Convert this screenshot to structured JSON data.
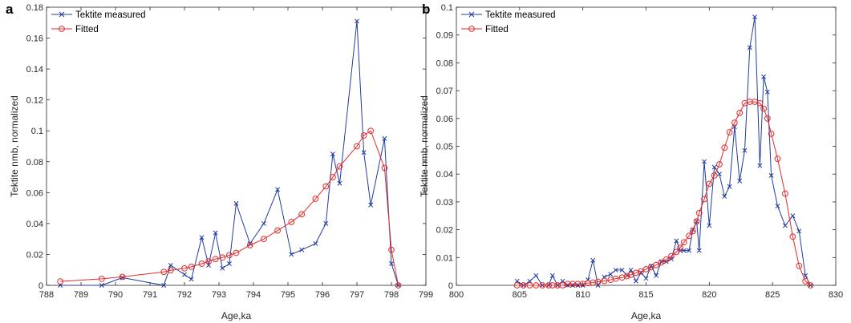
{
  "chart_data": [
    {
      "panel": "a",
      "type": "line",
      "xlabel": "Age,ka",
      "ylabel": "Tektite nmb, normalized",
      "xlim": [
        788,
        799
      ],
      "ylim": [
        0,
        0.18
      ],
      "xticks": [
        "788",
        "789",
        "790",
        "791",
        "792",
        "793",
        "794",
        "795",
        "796",
        "797",
        "798",
        "799"
      ],
      "yticks": [
        "0",
        "0.02",
        "0.04",
        "0.06",
        "0.08",
        "0.1",
        "0.12",
        "0.14",
        "0.16",
        "0.18"
      ],
      "legend_position": "top-left",
      "series": [
        {
          "name": "Tektite measured",
          "color": "#1f3c9e",
          "marker": "x",
          "points": [
            [
              788.4,
              0.0
            ],
            [
              789.6,
              0.0
            ],
            [
              790.2,
              0.005
            ],
            [
              791.4,
              0.0
            ],
            [
              791.6,
              0.013
            ],
            [
              792.0,
              0.007
            ],
            [
              792.2,
              0.004
            ],
            [
              792.5,
              0.031
            ],
            [
              792.7,
              0.013
            ],
            [
              792.9,
              0.034
            ],
            [
              793.1,
              0.011
            ],
            [
              793.3,
              0.014
            ],
            [
              793.5,
              0.053
            ],
            [
              793.9,
              0.027
            ],
            [
              794.3,
              0.04
            ],
            [
              794.7,
              0.062
            ],
            [
              795.1,
              0.02
            ],
            [
              795.4,
              0.023
            ],
            [
              795.8,
              0.027
            ],
            [
              796.1,
              0.04
            ],
            [
              796.3,
              0.085
            ],
            [
              796.5,
              0.066
            ],
            [
              797.0,
              0.171
            ],
            [
              797.2,
              0.086
            ],
            [
              797.4,
              0.052
            ],
            [
              797.8,
              0.095
            ],
            [
              798.0,
              0.014
            ],
            [
              798.2,
              0.0
            ]
          ]
        },
        {
          "name": "Fitted",
          "color": "#e52b2b",
          "marker": "o",
          "points": [
            [
              788.4,
              0.0025
            ],
            [
              789.6,
              0.0042
            ],
            [
              790.2,
              0.0055
            ],
            [
              791.4,
              0.0087
            ],
            [
              791.6,
              0.0097
            ],
            [
              792.0,
              0.011
            ],
            [
              792.2,
              0.012
            ],
            [
              792.5,
              0.014
            ],
            [
              792.7,
              0.0155
            ],
            [
              792.9,
              0.017
            ],
            [
              793.1,
              0.018
            ],
            [
              793.3,
              0.0195
            ],
            [
              793.5,
              0.021
            ],
            [
              793.9,
              0.026
            ],
            [
              794.3,
              0.03
            ],
            [
              794.7,
              0.0355
            ],
            [
              795.1,
              0.041
            ],
            [
              795.4,
              0.046
            ],
            [
              795.8,
              0.056
            ],
            [
              796.1,
              0.064
            ],
            [
              796.3,
              0.07
            ],
            [
              796.5,
              0.077
            ],
            [
              797.0,
              0.09
            ],
            [
              797.2,
              0.097
            ],
            [
              797.4,
              0.1
            ],
            [
              797.8,
              0.076
            ],
            [
              798.0,
              0.023
            ],
            [
              798.2,
              0.0
            ]
          ]
        }
      ]
    },
    {
      "panel": "b",
      "type": "line",
      "xlabel": "Age,ka",
      "ylabel": "Tektite nmb, normalized",
      "xlim": [
        800,
        830
      ],
      "ylim": [
        0,
        0.1
      ],
      "xticks": [
        "800",
        "805",
        "810",
        "815",
        "820",
        "825",
        "830"
      ],
      "yticks": [
        "0",
        "0.01",
        "0.02",
        "0.03",
        "0.04",
        "0.05",
        "0.06",
        "0.07",
        "0.08",
        "0.09",
        "0.1"
      ],
      "legend_position": "top-left",
      "series": [
        {
          "name": "Tektite measured",
          "color": "#1f3c9e",
          "marker": "x",
          "points": [
            [
              804.8,
              0.0015
            ],
            [
              805.3,
              0.0
            ],
            [
              805.8,
              0.0015
            ],
            [
              806.3,
              0.0035
            ],
            [
              806.8,
              0.0
            ],
            [
              807.3,
              0.0
            ],
            [
              807.6,
              0.0035
            ],
            [
              808.0,
              0.0
            ],
            [
              808.4,
              0.0015
            ],
            [
              808.8,
              0.0
            ],
            [
              809.2,
              0.0
            ],
            [
              809.6,
              0.0
            ],
            [
              810.0,
              0.0
            ],
            [
              810.4,
              0.002
            ],
            [
              810.8,
              0.009
            ],
            [
              811.2,
              0.0
            ],
            [
              811.7,
              0.003
            ],
            [
              812.2,
              0.004
            ],
            [
              812.6,
              0.0055
            ],
            [
              813.1,
              0.0055
            ],
            [
              813.5,
              0.0035
            ],
            [
              813.8,
              0.0055
            ],
            [
              814.2,
              0.0015
            ],
            [
              814.6,
              0.0045
            ],
            [
              815.0,
              0.0025
            ],
            [
              815.4,
              0.007
            ],
            [
              815.8,
              0.0035
            ],
            [
              816.2,
              0.0085
            ],
            [
              816.6,
              0.0085
            ],
            [
              817.0,
              0.0095
            ],
            [
              817.4,
              0.016
            ],
            [
              817.7,
              0.0125
            ],
            [
              818.0,
              0.0125
            ],
            [
              818.4,
              0.0125
            ],
            [
              818.7,
              0.02
            ],
            [
              819.0,
              0.023
            ],
            [
              819.2,
              0.0125
            ],
            [
              819.6,
              0.0445
            ],
            [
              820.0,
              0.0215
            ],
            [
              820.4,
              0.0425
            ],
            [
              820.8,
              0.04
            ],
            [
              821.2,
              0.032
            ],
            [
              821.6,
              0.0355
            ],
            [
              822.0,
              0.057
            ],
            [
              822.4,
              0.0375
            ],
            [
              822.8,
              0.0485
            ],
            [
              823.2,
              0.0855
            ],
            [
              823.6,
              0.0965
            ],
            [
              824.0,
              0.043
            ],
            [
              824.3,
              0.075
            ],
            [
              824.6,
              0.0695
            ],
            [
              824.9,
              0.0395
            ],
            [
              825.4,
              0.0285
            ],
            [
              826.0,
              0.0215
            ],
            [
              826.6,
              0.025
            ],
            [
              827.1,
              0.0195
            ],
            [
              827.6,
              0.0035
            ],
            [
              828.0,
              0.0
            ]
          ]
        },
        {
          "name": "Fitted",
          "color": "#e52b2b",
          "marker": "o",
          "points": [
            [
              804.8,
              0.0
            ],
            [
              805.3,
              0.0
            ],
            [
              805.8,
              0.0
            ],
            [
              806.3,
              0.0
            ],
            [
              806.8,
              0.0
            ],
            [
              807.3,
              0.0
            ],
            [
              807.6,
              0.0
            ],
            [
              808.0,
              0.0
            ],
            [
              808.4,
              0.0
            ],
            [
              808.8,
              0.0005
            ],
            [
              809.2,
              0.0005
            ],
            [
              809.6,
              0.0005
            ],
            [
              810.0,
              0.0005
            ],
            [
              810.4,
              0.0008
            ],
            [
              810.8,
              0.001
            ],
            [
              811.2,
              0.0013
            ],
            [
              811.7,
              0.0016
            ],
            [
              812.2,
              0.002
            ],
            [
              812.6,
              0.0024
            ],
            [
              813.1,
              0.0028
            ],
            [
              813.5,
              0.0033
            ],
            [
              813.8,
              0.0038
            ],
            [
              814.2,
              0.0045
            ],
            [
              814.6,
              0.005
            ],
            [
              815.0,
              0.0058
            ],
            [
              815.4,
              0.0065
            ],
            [
              815.8,
              0.0073
            ],
            [
              816.2,
              0.0082
            ],
            [
              816.6,
              0.0093
            ],
            [
              817.0,
              0.0105
            ],
            [
              817.4,
              0.012
            ],
            [
              817.7,
              0.0135
            ],
            [
              818.0,
              0.0155
            ],
            [
              818.4,
              0.0178
            ],
            [
              818.7,
              0.0195
            ],
            [
              819.0,
              0.023
            ],
            [
              819.2,
              0.026
            ],
            [
              819.6,
              0.031
            ],
            [
              820.0,
              0.0365
            ],
            [
              820.4,
              0.0395
            ],
            [
              820.8,
              0.0435
            ],
            [
              821.2,
              0.0495
            ],
            [
              821.6,
              0.055
            ],
            [
              822.0,
              0.0585
            ],
            [
              822.4,
              0.062
            ],
            [
              822.8,
              0.0655
            ],
            [
              823.2,
              0.066
            ],
            [
              823.6,
              0.066
            ],
            [
              824.0,
              0.0655
            ],
            [
              824.3,
              0.0635
            ],
            [
              824.6,
              0.06
            ],
            [
              824.9,
              0.0545
            ],
            [
              825.4,
              0.0455
            ],
            [
              826.0,
              0.033
            ],
            [
              826.6,
              0.0175
            ],
            [
              827.1,
              0.007
            ],
            [
              827.6,
              0.0015
            ],
            [
              828.0,
              0.0
            ]
          ]
        }
      ]
    }
  ]
}
